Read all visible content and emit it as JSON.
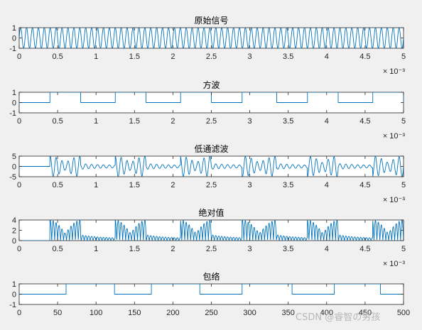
{
  "watermark": "CSDN @睿智の男孩",
  "chart_data": [
    {
      "type": "line",
      "title": "原始信号",
      "x_exponent_label": "× 10⁻³",
      "xlim": [
        0,
        0.005
      ],
      "ylim": [
        -1,
        1
      ],
      "xticks": [
        0,
        0.0005,
        0.001,
        0.0015,
        0.002,
        0.0025,
        0.003,
        0.0035,
        0.004,
        0.0045,
        0.005
      ],
      "xtick_labels": [
        "0",
        "0.5",
        "1",
        "1.5",
        "2",
        "2.5",
        "3",
        "3.5",
        "4",
        "4.5",
        "5"
      ],
      "yticks": [
        -1,
        0,
        1
      ],
      "ytick_labels": [
        "-1",
        "0",
        "1"
      ],
      "signal": {
        "kind": "sine",
        "amplitude": 1,
        "cycles": 65
      }
    },
    {
      "type": "line",
      "title": "方波",
      "x_exponent_label": "× 10⁻³",
      "xlim": [
        0,
        0.005
      ],
      "ylim": [
        -1,
        1
      ],
      "xticks": [
        0,
        0.0005,
        0.001,
        0.0015,
        0.002,
        0.0025,
        0.003,
        0.0035,
        0.004,
        0.0045,
        0.005
      ],
      "xtick_labels": [
        "0",
        "0.5",
        "1",
        "1.5",
        "2",
        "2.5",
        "3",
        "3.5",
        "4",
        "4.5",
        "5"
      ],
      "yticks": [
        -1,
        0,
        1
      ],
      "ytick_labels": [
        "-1",
        "0",
        "1"
      ],
      "signal": {
        "kind": "square",
        "low": 0,
        "high": 1,
        "high_intervals": [
          [
            0.0004,
            0.0008
          ],
          [
            0.00125,
            0.00165
          ],
          [
            0.0021,
            0.0025
          ],
          [
            0.0029,
            0.00335
          ],
          [
            0.00375,
            0.00415
          ],
          [
            0.0046,
            0.005
          ]
        ]
      }
    },
    {
      "type": "line",
      "title": "低通滤波",
      "x_exponent_label": "× 10⁻³",
      "xlim": [
        0,
        0.005
      ],
      "ylim": [
        -5,
        5
      ],
      "xticks": [
        0,
        0.0005,
        0.001,
        0.0015,
        0.002,
        0.0025,
        0.003,
        0.0035,
        0.004,
        0.0045,
        0.005
      ],
      "xtick_labels": [
        "0",
        "0.5",
        "1",
        "1.5",
        "2",
        "2.5",
        "3",
        "3.5",
        "4",
        "4.5",
        "5"
      ],
      "yticks": [
        -5,
        0,
        5
      ],
      "ytick_labels": [
        "-5",
        "0",
        "5"
      ],
      "signal": {
        "kind": "filtered",
        "peak": 5,
        "cycles": 65,
        "high_intervals": [
          [
            0.0004,
            0.0008
          ],
          [
            0.00125,
            0.00165
          ],
          [
            0.0021,
            0.0025
          ],
          [
            0.0029,
            0.00335
          ],
          [
            0.00375,
            0.00415
          ],
          [
            0.0046,
            0.005
          ]
        ]
      }
    },
    {
      "type": "line",
      "title": "绝对值",
      "x_exponent_label": "× 10⁻³",
      "xlim": [
        0,
        0.005
      ],
      "ylim": [
        0,
        4
      ],
      "xticks": [
        0,
        0.0005,
        0.001,
        0.0015,
        0.002,
        0.0025,
        0.003,
        0.0035,
        0.004,
        0.0045,
        0.005
      ],
      "xtick_labels": [
        "0",
        "0.5",
        "1",
        "1.5",
        "2",
        "2.5",
        "3",
        "3.5",
        "4",
        "4.5",
        "5"
      ],
      "yticks": [
        0,
        2,
        4
      ],
      "ytick_labels": [
        "0",
        "2",
        "4"
      ],
      "signal": {
        "kind": "absfiltered",
        "peak": 4,
        "cycles": 65,
        "high_intervals": [
          [
            0.0004,
            0.0008
          ],
          [
            0.00125,
            0.00165
          ],
          [
            0.0021,
            0.0025
          ],
          [
            0.0029,
            0.00335
          ],
          [
            0.00375,
            0.00415
          ],
          [
            0.0046,
            0.005
          ]
        ]
      }
    },
    {
      "type": "line",
      "title": "包络",
      "x_exponent_label": "",
      "xlim": [
        0,
        500
      ],
      "ylim": [
        -1,
        1
      ],
      "xticks": [
        0,
        50,
        100,
        150,
        200,
        250,
        300,
        350,
        400,
        450,
        500
      ],
      "xtick_labels": [
        "0",
        "50",
        "100",
        "150",
        "200",
        "250",
        "300",
        "350",
        "400",
        "450",
        "500"
      ],
      "yticks": [
        -1,
        0,
        1
      ],
      "ytick_labels": [
        "-1",
        "0",
        "1"
      ],
      "signal": {
        "kind": "square",
        "low": 0,
        "high": 1,
        "high_intervals": [
          [
            61,
            124
          ],
          [
            172,
            235
          ],
          [
            290,
            355
          ],
          [
            410,
            470
          ]
        ]
      }
    }
  ]
}
